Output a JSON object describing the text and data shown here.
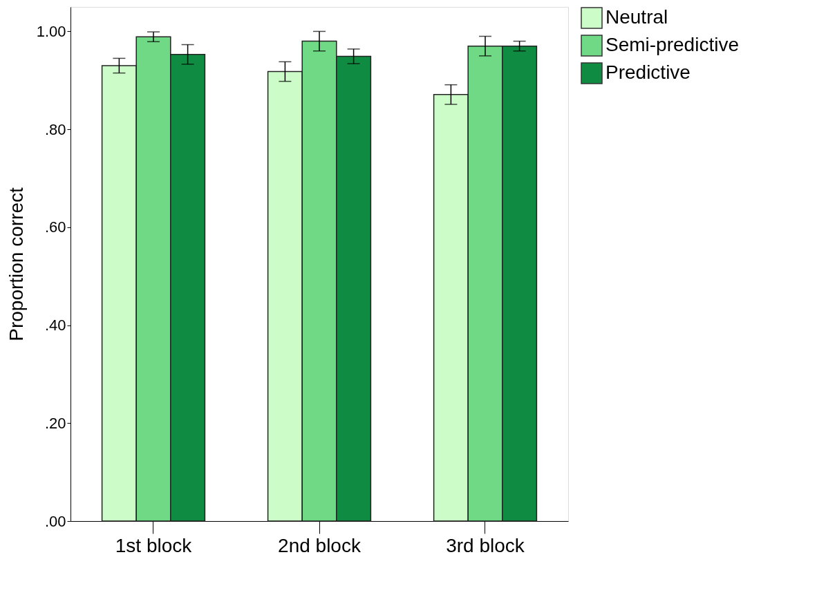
{
  "chart_data": {
    "type": "bar",
    "ylabel": "Proportion correct",
    "categories": [
      "1st block",
      "2nd block",
      "3rd block"
    ],
    "series": [
      {
        "name": "Neutral",
        "color": "#ccfcc8",
        "values": [
          0.93,
          0.918,
          0.871
        ],
        "errors": [
          0.015,
          0.02,
          0.02
        ]
      },
      {
        "name": "Semi-predictive",
        "color": "#6fd986",
        "values": [
          0.989,
          0.98,
          0.97
        ],
        "errors": [
          0.01,
          0.02,
          0.02
        ]
      },
      {
        "name": "Predictive",
        "color": "#108c42",
        "values": [
          0.953,
          0.949,
          0.97
        ],
        "errors": [
          0.02,
          0.015,
          0.01
        ]
      }
    ],
    "ylim": [
      0,
      1.05
    ],
    "yticks": [
      {
        "value": 0,
        "label": ".00"
      },
      {
        "value": 0.2,
        "label": ".20"
      },
      {
        "value": 0.4,
        "label": ".40"
      },
      {
        "value": 0.6,
        "label": ".60"
      },
      {
        "value": 0.8,
        "label": ".80"
      },
      {
        "value": 1,
        "label": "1.00"
      }
    ],
    "grid": false,
    "legend": "top right"
  }
}
